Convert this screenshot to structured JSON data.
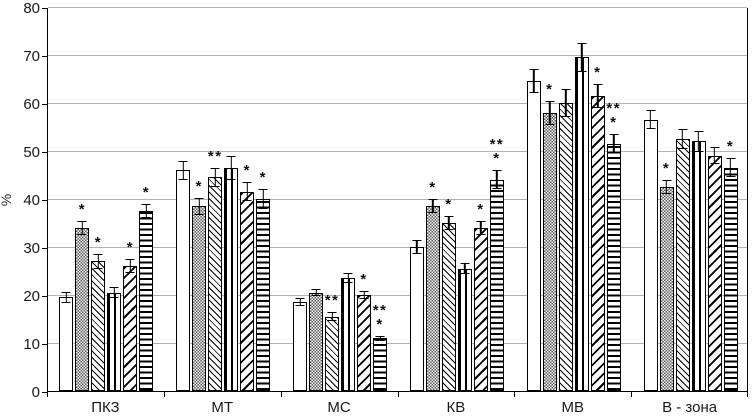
{
  "chart": {
    "ylabel": "%"
  },
  "chart_data": {
    "type": "bar",
    "title": "",
    "xlabel": "",
    "ylabel": "%",
    "ylim": [
      0,
      80
    ],
    "yticks": [
      0,
      10,
      20,
      30,
      40,
      50,
      60,
      70,
      80
    ],
    "grid": true,
    "legend": "none",
    "categories": [
      "ПКЗ",
      "МТ",
      "МС",
      "КВ",
      "МВ",
      "В - зона"
    ],
    "series": [
      {
        "name": "series-1-plain-white",
        "pattern": "plain",
        "values": [
          19.5,
          46.0,
          18.5,
          30.0,
          64.5,
          56.5
        ],
        "errors": [
          1.2,
          2.0,
          0.8,
          1.5,
          2.5,
          2.0
        ],
        "annotations": [
          "",
          "",
          "",
          "",
          "",
          ""
        ]
      },
      {
        "name": "series-2-gray-dotted",
        "pattern": "dotted",
        "values": [
          34.0,
          38.5,
          20.5,
          38.5,
          58.0,
          42.5
        ],
        "errors": [
          1.5,
          1.8,
          0.8,
          1.5,
          2.5,
          1.5
        ],
        "annotations": [
          "*",
          "*",
          "",
          "*",
          "*",
          "*"
        ]
      },
      {
        "name": "series-3-thin-diagonal",
        "pattern": "diag-thin",
        "values": [
          27.0,
          44.5,
          15.5,
          35.0,
          60.0,
          52.5
        ],
        "errors": [
          1.5,
          2.0,
          1.0,
          1.5,
          3.0,
          2.0
        ],
        "annotations": [
          "*",
          "**",
          "**",
          "*",
          "",
          ""
        ]
      },
      {
        "name": "series-4-vertical-stripes",
        "pattern": "vertical",
        "values": [
          20.5,
          46.5,
          23.5,
          25.5,
          69.5,
          52.0
        ],
        "errors": [
          1.2,
          2.5,
          1.0,
          1.2,
          3.0,
          2.2
        ],
        "annotations": [
          "",
          "",
          "",
          "",
          "",
          ""
        ]
      },
      {
        "name": "series-5-wide-diagonal",
        "pattern": "diag-wide",
        "values": [
          26.0,
          41.5,
          20.0,
          34.0,
          61.5,
          49.0
        ],
        "errors": [
          1.5,
          2.0,
          0.8,
          1.5,
          2.5,
          1.8
        ],
        "annotations": [
          "*",
          "*",
          "*",
          "*",
          "*",
          ""
        ]
      },
      {
        "name": "series-6-horizontal-stripes",
        "pattern": "horizontal",
        "values": [
          37.5,
          40.0,
          11.0,
          44.0,
          51.5,
          46.5
        ],
        "errors": [
          1.5,
          2.0,
          0.5,
          2.0,
          2.0,
          2.0
        ],
        "annotations": [
          "*",
          "*",
          "**\n*",
          "**\n*",
          "**\n*",
          "*"
        ]
      }
    ]
  }
}
